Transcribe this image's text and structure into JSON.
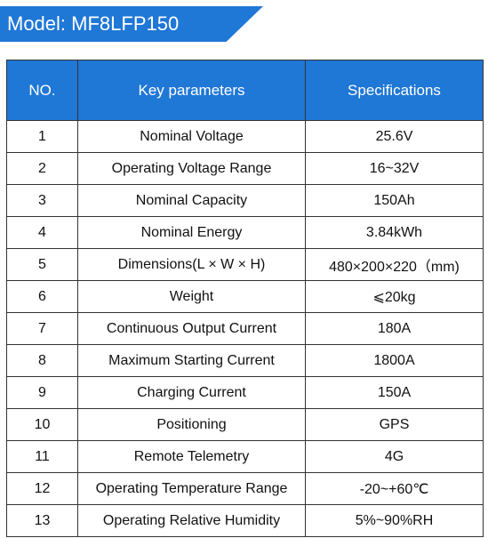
{
  "title": "Model: MF8LFP150",
  "colors": {
    "accent_blue": "#1f77d6",
    "border": "#333333"
  },
  "table": {
    "headers": [
      "NO.",
      "Key parameters",
      "Specifications"
    ],
    "rows": [
      {
        "no": "1",
        "param": "Nominal Voltage",
        "spec": "25.6V"
      },
      {
        "no": "2",
        "param": "Operating Voltage Range",
        "spec": "16~32V"
      },
      {
        "no": "3",
        "param": "Nominal Capacity",
        "spec": "150Ah"
      },
      {
        "no": "4",
        "param": "Nominal Energy",
        "spec": "3.84kWh"
      },
      {
        "no": "5",
        "param": "Dimensions(L × W × H)",
        "spec": "480×200×220（mm)"
      },
      {
        "no": "6",
        "param": "Weight",
        "spec": "⩽20kg"
      },
      {
        "no": "7",
        "param": "Continuous Output Current",
        "spec": "180A"
      },
      {
        "no": "8",
        "param": "Maximum Starting Current",
        "spec": "1800A"
      },
      {
        "no": "9",
        "param": "Charging Current",
        "spec": "150A"
      },
      {
        "no": "10",
        "param": "Positioning",
        "spec": "GPS"
      },
      {
        "no": "11",
        "param": "Remote Telemetry",
        "spec": "4G"
      },
      {
        "no": "12",
        "param": "Operating Temperature Range",
        "spec": "-20~+60℃"
      },
      {
        "no": "13",
        "param": "Operating Relative Humidity",
        "spec": "5%~90%RH"
      }
    ]
  }
}
